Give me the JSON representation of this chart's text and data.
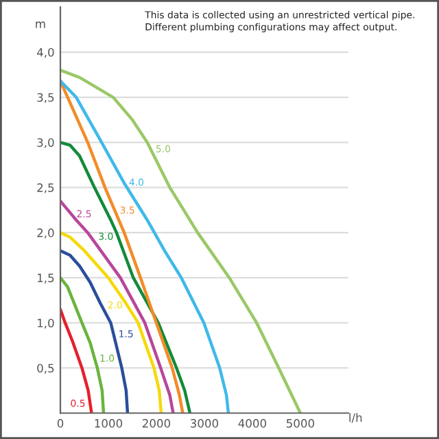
{
  "chart_data": {
    "type": "line",
    "xlabel": "l/h",
    "ylabel": "m",
    "xlim": [
      0,
      6000
    ],
    "ylim": [
      0,
      4.5
    ],
    "xticks": [
      0,
      1000,
      2000,
      3000,
      4000,
      5000
    ],
    "yticks": [
      {
        "value": 0.5,
        "label": "0,5"
      },
      {
        "value": 1,
        "label": "1,0"
      },
      {
        "value": 1.5,
        "label": "1,5"
      },
      {
        "value": 2,
        "label": "2,0"
      },
      {
        "value": 2.5,
        "label": "2,5"
      },
      {
        "value": 3,
        "label": "3,0"
      },
      {
        "value": 3.5,
        "label": "3,5"
      },
      {
        "value": 4,
        "label": "4,0"
      }
    ],
    "grid": "y",
    "legend": false,
    "marker": "none",
    "line_style": "solid",
    "series": [
      {
        "color": "#e5202e",
        "x": [
          0,
          100,
          250,
          450,
          580,
          622,
          650
        ],
        "values": [
          1.15,
          1.0,
          0.8,
          0.5,
          0.25,
          0.1,
          0
        ]
      },
      {
        "color": "#6ab43e",
        "x": [
          0,
          150,
          300,
          450,
          620,
          716,
          770,
          870,
          900
        ],
        "values": [
          1.5,
          1.4,
          1.2,
          1.0,
          0.78,
          0.6,
          0.5,
          0.25,
          0
        ]
      },
      {
        "color": "#2a4e9b",
        "x": [
          0,
          200,
          400,
          620,
          830,
          1050,
          1110,
          1280,
          1370,
          1400
        ],
        "values": [
          1.8,
          1.75,
          1.63,
          1.45,
          1.22,
          1.0,
          0.87,
          0.5,
          0.25,
          0
        ]
      },
      {
        "color": "#f5d90a",
        "x": [
          0,
          200,
          500,
          1000,
          1350,
          1397,
          1620,
          1950,
          2060,
          2100
        ],
        "values": [
          2.0,
          1.95,
          1.8,
          1.5,
          1.23,
          1.19,
          1.0,
          0.5,
          0.25,
          0
        ]
      },
      {
        "color": "#b8479a",
        "x": [
          0,
          236,
          330,
          570,
          1250,
          1760,
          2090,
          2280,
          2350
        ],
        "values": [
          2.35,
          2.2,
          2.14,
          2.0,
          1.5,
          1.0,
          0.5,
          0.2,
          0
        ]
      },
      {
        "color": "#138a3a",
        "x": [
          0,
          200,
          400,
          710,
          1050,
          1170,
          1205,
          1520,
          2040,
          2420,
          2590,
          2700
        ],
        "values": [
          3.0,
          2.97,
          2.85,
          2.5,
          2.14,
          2.0,
          1.95,
          1.5,
          1.0,
          0.5,
          0.25,
          0
        ]
      },
      {
        "color": "#f28c28",
        "x": [
          0,
          570,
          930,
          1138,
          1330,
          1670,
          2000,
          2330,
          2480,
          2550
        ],
        "values": [
          3.68,
          3.0,
          2.5,
          2.24,
          2.0,
          1.5,
          1.0,
          0.5,
          0.2,
          0
        ]
      },
      {
        "color": "#3fb9e9",
        "x": [
          0,
          330,
          860,
          1328,
          1810,
          2170,
          2520,
          2990,
          3320,
          3460,
          3500
        ],
        "values": [
          3.68,
          3.5,
          3.0,
          2.55,
          2.14,
          1.8,
          1.5,
          1.0,
          0.5,
          0.2,
          0
        ]
      },
      {
        "color": "#9ac867",
        "x": [
          0,
          400,
          1100,
          1500,
          1810,
          1885,
          2280,
          2860,
          3520,
          4090,
          4550,
          5000
        ],
        "values": [
          3.8,
          3.72,
          3.5,
          3.25,
          3.0,
          2.92,
          2.5,
          2.0,
          1.5,
          1.0,
          0.5,
          0
        ]
      }
    ],
    "annotations": [
      {
        "text": "0.5",
        "x": 622,
        "y": 0.1
      },
      {
        "text": "1.0",
        "x": 716,
        "y": 0.6
      },
      {
        "text": "1.5",
        "x": 1110,
        "y": 0.87
      },
      {
        "text": "2.0",
        "x": 1397,
        "y": 1.19
      },
      {
        "text": "2.5",
        "x": 236,
        "y": 2.2
      },
      {
        "text": "3.0",
        "x": 1205,
        "y": 1.95
      },
      {
        "text": "3.5",
        "x": 1138,
        "y": 2.24
      },
      {
        "text": "4.0",
        "x": 1328,
        "y": 2.55
      },
      {
        "text": "5.0",
        "x": 1885,
        "y": 2.92
      },
      "This data is collected using an unrestricted vertical pipe.\nDifferent plumbing configurations may affect output."
    ]
  }
}
